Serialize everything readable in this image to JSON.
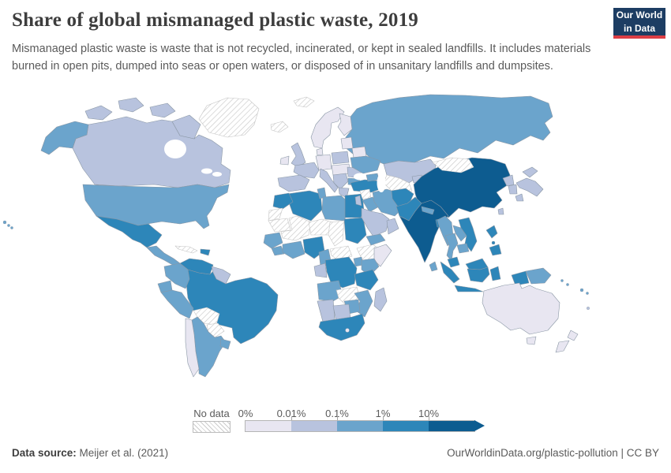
{
  "header": {
    "title": "Share of global mismanaged plastic waste, 2019",
    "subtitle": "Mismanaged plastic waste is waste that is not recycled, incinerated, or kept in sealed landfills. It includes materials burned in open pits, dumped into seas or open waters, or disposed of in unsanitary landfills and dumpsites.",
    "logo": {
      "line1": "Our World",
      "line2": "in Data",
      "bg": "#1d3d63",
      "stripe": "#dd3e45"
    }
  },
  "legend": {
    "no_data_label": "No data",
    "tick_labels": [
      "0%",
      "0.01%",
      "0.1%",
      "1%",
      "10%"
    ],
    "colors": [
      "#e8e6f1",
      "#b8c3de",
      "#6ba4cc",
      "#2d86b9",
      "#0d5c90"
    ],
    "border_color": "#8a97a5",
    "no_data_border": "#c4c4c4"
  },
  "footer": {
    "source_label": "Data source:",
    "source_value": "Meijer et al. (2021)",
    "link": "OurWorldinData.org/plastic-pollution | CC BY"
  },
  "chart_data": {
    "type": "choropleth-world-map",
    "title": "Share of global mismanaged plastic waste, 2019",
    "year": 2019,
    "unit": "share of global total, %",
    "scale": "logarithmic bins",
    "bin_edges": [
      "0%",
      "0.01%",
      "0.1%",
      "1%",
      "10%"
    ],
    "bin_colors": [
      "#e8e6f1",
      "#b8c3de",
      "#6ba4cc",
      "#2d86b9",
      "#0d5c90"
    ],
    "no_data_style": "white with gray diagonal hatching",
    "values_by_bin": {
      "more_than_10pct": [
        "China",
        "India"
      ],
      "1_to_10pct": [
        "Mexico",
        "Venezuela",
        "Brazil",
        "Haiti",
        "Dominican Republic",
        "Turkey",
        "Egypt",
        "Algeria",
        "Morocco",
        "Sudan",
        "Nigeria",
        "Democratic Republic of Congo",
        "Tanzania",
        "South Africa",
        "Afghanistan",
        "Pakistan",
        "Bangladesh",
        "Vietnam",
        "Philippines",
        "Malaysia",
        "Indonesia"
      ],
      "0.1_to_1pct": [
        "United States",
        "Russia",
        "Colombia",
        "Ecuador",
        "Peru",
        "Argentina",
        "Uruguay",
        "Guatemala",
        "Honduras",
        "Nicaragua",
        "Panama",
        "Ukraine",
        "Bulgaria",
        "Tunisia",
        "Libya",
        "Iraq",
        "Iran",
        "Yemen",
        "Kenya",
        "Uganda",
        "Angola",
        "Mozambique",
        "Zimbabwe",
        "Cameroon",
        "Ghana",
        "Cote d'Ivoire",
        "Senegal",
        "Guinea",
        "Myanmar",
        "Thailand",
        "Laos",
        "Cambodia",
        "Nepal",
        "Sri Lanka",
        "Papua New Guinea"
      ],
      "0.01_to_0.1pct": [
        "Canada",
        "Kazakhstan",
        "Saudi Arabia",
        "Oman",
        "Jordan",
        "United Kingdom",
        "France",
        "Spain",
        "Portugal",
        "Italy",
        "Poland",
        "Romania",
        "Serbia",
        "Greece",
        "Japan",
        "North Korea",
        "South Korea",
        "Taiwan",
        "Guyana",
        "Suriname",
        "Namibia",
        "Botswana",
        "Madagascar",
        "Gabon",
        "Republic of Congo"
      ],
      "0_to_0.01pct": [
        "Norway",
        "Sweden",
        "Finland",
        "Denmark",
        "Germany",
        "Ireland",
        "Estonia",
        "Latvia",
        "Lithuania",
        "Belarus",
        "Czechia",
        "Austria",
        "Hungary",
        "Chile",
        "Somalia",
        "Australia",
        "New Zealand",
        "Lesotho"
      ],
      "no_data": [
        "Greenland",
        "Svalbard",
        "Iceland",
        "Cuba",
        "Bolivia",
        "Paraguay",
        "Mongolia",
        "Syria",
        "Turkmenistan",
        "Uzbekistan",
        "Western Sahara",
        "Mauritania",
        "Mali",
        "Niger",
        "Chad",
        "Ethiopia",
        "Central African Republic",
        "Zambia"
      ]
    }
  },
  "map": {
    "regions": {
      "russia": "2",
      "canada": "1",
      "alaska": "2",
      "usa": "2",
      "greenland": "nd",
      "svalbard": "nd",
      "iceland": "nd",
      "arctic-a": "1",
      "arctic-b": "1",
      "arctic-c": "1",
      "baffin": "1",
      "hawaii-1": "2",
      "hawaii-2": "2",
      "hawaii-3": "2",
      "mexico": "3",
      "central-america": "2",
      "cuba": "nd",
      "hispaniola": "3",
      "brazil": "3",
      "venezuela": "3",
      "colombia": "2",
      "guyanas": "1",
      "ecuador": "2",
      "peru": "2",
      "bolivia": "nd",
      "paraguay": "nd",
      "argentina": "2",
      "chile": "0",
      "uruguay": "2",
      "norway-sweden": "0",
      "finland": "0",
      "baltics": "0",
      "belarus": "0",
      "poland": "1",
      "germany": "0",
      "denmark": "0",
      "ireland": "0",
      "uk": "1",
      "france": "1",
      "spain": "1",
      "italy": "1",
      "central-europe": "0",
      "balkans": "1",
      "romania": "1",
      "bulgaria": "2",
      "greece": "1",
      "ukraine": "2",
      "algeria": "3",
      "morocco": "3",
      "tunisia": "2",
      "libya": "2",
      "egypt": "3",
      "western-sahara": "nd",
      "mauritania": "nd",
      "mali": "nd",
      "niger": "nd",
      "chad": "nd",
      "sudan": "3",
      "ethiopia": "nd",
      "somalia": "0",
      "senegal-guinea": "2",
      "sierra-liberia": "2",
      "ivory-ghana": "2",
      "nigeria": "3",
      "cameroon": "2",
      "central-african-republic": "nd",
      "gabon-congo": "1",
      "drc": "3",
      "uganda": "2",
      "kenya": "2",
      "tanzania": "3",
      "angola": "2",
      "zambia": "nd",
      "mozambique": "2",
      "zimbabwe": "2",
      "namibia": "1",
      "botswana": "1",
      "south-africa": "3",
      "lesotho": "0",
      "madagascar": "1",
      "turkey": "3",
      "syria": "nd",
      "jordan-israel": "1",
      "iraq": "2",
      "iran": "2",
      "saudi-arabia": "1",
      "yemen": "2",
      "oman": "1",
      "caucasus": "2",
      "kazakhstan": "1",
      "turkmenistan-uzbekistan": "nd",
      "kyrgyz-tajik": "1",
      "afghanistan": "3",
      "pakistan": "3",
      "china": "4",
      "mongolia": "nd",
      "india": "4",
      "nepal": "2",
      "bangladesh": "3",
      "sri-lanka": "2",
      "myanmar": "2",
      "thailand": "2",
      "laos": "2",
      "vietnam": "3",
      "cambodia": "2",
      "malaysia-peninsular": "3",
      "malaysia-borneo": "3",
      "indonesia-kalimantan": "3",
      "indonesia-sumatra": "3",
      "indonesia-java": "3",
      "indonesia-sulawesi": "3",
      "indonesia-papua": "3",
      "papua-new-guinea": "2",
      "philippines-luzon": "3",
      "philippines-visayas": "3",
      "philippines-mindanao": "3",
      "taiwan": "1",
      "north-korea": "1",
      "south-korea": "1",
      "japan-hokkaido": "1",
      "japan-honshu": "1",
      "japan-kyushu": "1",
      "australia": "0",
      "tasmania": "0",
      "new-zealand-north": "0",
      "new-zealand-south": "0",
      "solomon-1": "2",
      "solomon-2": "2",
      "fiji-1": "2",
      "fiji-2": "2",
      "new-caledonia": "1"
    }
  }
}
